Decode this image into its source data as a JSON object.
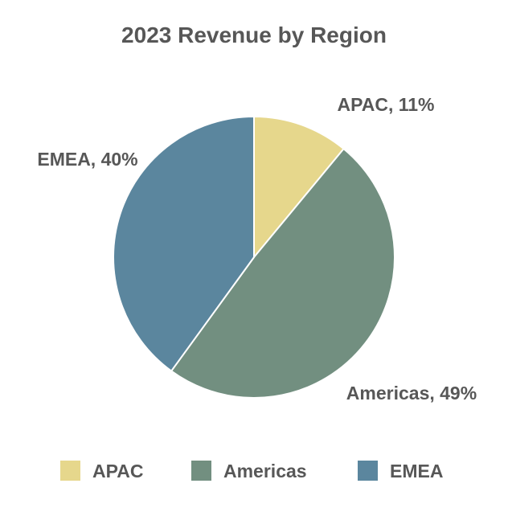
{
  "chart_data": {
    "type": "pie",
    "title": "2023 Revenue by Region",
    "categories": [
      "APAC",
      "Americas",
      "EMEA"
    ],
    "values": [
      11,
      49,
      40
    ],
    "unit": "%",
    "slice_labels": [
      "APAC, 11%",
      "Americas, 49%",
      "EMEA, 40%"
    ],
    "colors": [
      "#e6d78c",
      "#728f80",
      "#5b869e"
    ],
    "start_angle": "12 o'clock",
    "direction": "clockwise",
    "legend": {
      "position": "bottom",
      "entries": [
        "APAC",
        "Americas",
        "EMEA"
      ]
    }
  }
}
